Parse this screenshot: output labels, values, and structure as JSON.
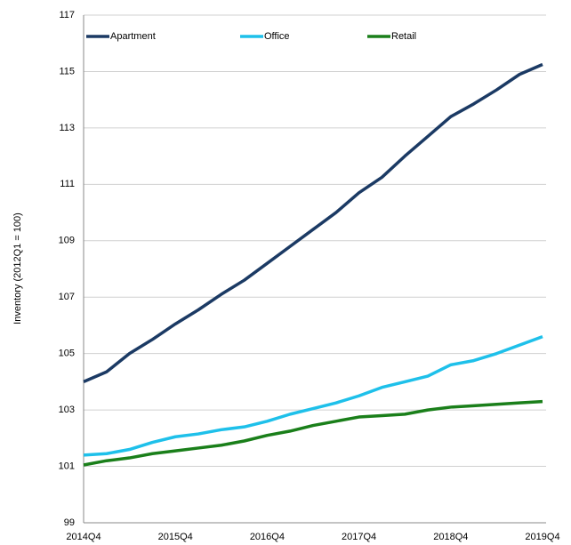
{
  "chart_data": {
    "type": "line",
    "y_label": "Inventory (2012Q1 = 100)",
    "categories": [
      "2014Q4",
      null,
      null,
      null,
      "2015Q4",
      null,
      null,
      null,
      "2016Q4",
      null,
      null,
      null,
      "2017Q4",
      null,
      null,
      null,
      "2018Q4",
      null,
      null,
      null,
      "2019Q4"
    ],
    "series": [
      {
        "name": "Apartment",
        "color": "#1b3a64",
        "values": [
          104.0,
          104.35,
          105.0,
          105.5,
          106.05,
          106.55,
          107.1,
          107.6,
          108.2,
          108.8,
          109.4,
          110.0,
          110.7,
          111.25,
          112.0,
          112.7,
          113.4,
          113.85,
          114.35,
          114.9,
          115.25
        ]
      },
      {
        "name": "Office",
        "color": "#1ec0ea",
        "values": [
          101.4,
          101.45,
          101.6,
          101.85,
          102.05,
          102.15,
          102.3,
          102.4,
          102.6,
          102.85,
          103.05,
          103.25,
          103.5,
          103.8,
          104.0,
          104.2,
          104.6,
          104.75,
          105.0,
          105.3,
          105.6
        ]
      },
      {
        "name": "Retail",
        "color": "#1a7f1a",
        "values": [
          101.05,
          101.2,
          101.3,
          101.45,
          101.55,
          101.65,
          101.75,
          101.9,
          102.1,
          102.25,
          102.45,
          102.6,
          102.75,
          102.8,
          102.85,
          103.0,
          103.1,
          103.15,
          103.2,
          103.25,
          103.3
        ]
      }
    ],
    "ylim": [
      99,
      117
    ],
    "yticks": [
      99,
      101,
      103,
      105,
      107,
      109,
      111,
      113,
      115,
      117
    ],
    "grid": true,
    "legend": "top"
  }
}
